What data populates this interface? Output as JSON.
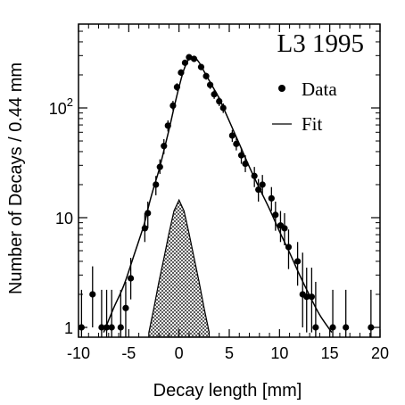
{
  "chart_data": {
    "type": "scatter",
    "title": "L3  1995",
    "xlabel": "Decay length [mm]",
    "ylabel": "Number of Decays / 0.44 mm",
    "xlim": [
      -10,
      20
    ],
    "ylim": [
      1,
      600
    ],
    "yscale": "log",
    "x_ticks": [
      "-10",
      "-5",
      "0",
      "5",
      "10",
      "15",
      "20"
    ],
    "y_ticks": [
      {
        "value": 1,
        "base": "1",
        "exp": ""
      },
      {
        "value": 10,
        "base": "10",
        "exp": ""
      },
      {
        "value": 100,
        "base": "10",
        "exp": "2"
      }
    ],
    "legend": {
      "position": "top-right",
      "data_label": "Data",
      "fit_label": "Fit"
    },
    "series": [
      {
        "name": "Data",
        "kind": "points_with_errors",
        "points": [
          {
            "x": -9.7,
            "y": 1,
            "lo": 0.5,
            "hi": 2.2
          },
          {
            "x": -8.6,
            "y": 2,
            "lo": 1.0,
            "hi": 3.6
          },
          {
            "x": -7.7,
            "y": 1,
            "lo": 0.5,
            "hi": 2.2
          },
          {
            "x": -7.2,
            "y": 1,
            "lo": 0.5,
            "hi": 2.2
          },
          {
            "x": -6.7,
            "y": 1,
            "lo": 0.5,
            "hi": 2.2
          },
          {
            "x": -5.8,
            "y": 1,
            "lo": 0.5,
            "hi": 2.2
          },
          {
            "x": -5.3,
            "y": 1.5,
            "lo": 0.8,
            "hi": 2.6
          },
          {
            "x": -4.8,
            "y": 2.8,
            "lo": 1.8,
            "hi": 4.3
          },
          {
            "x": -3.4,
            "y": 8,
            "lo": 6,
            "hi": 11
          },
          {
            "x": -3.1,
            "y": 11,
            "lo": 8,
            "hi": 14
          },
          {
            "x": -2.3,
            "y": 20,
            "lo": 16,
            "hi": 24
          },
          {
            "x": -1.9,
            "y": 29,
            "lo": 25,
            "hi": 34
          },
          {
            "x": -1.5,
            "y": 45,
            "lo": 38,
            "hi": 52
          },
          {
            "x": -1.1,
            "y": 69,
            "lo": 61,
            "hi": 77
          },
          {
            "x": -0.6,
            "y": 105,
            "lo": 95,
            "hi": 116
          },
          {
            "x": -0.2,
            "y": 155,
            "lo": 143,
            "hi": 168
          },
          {
            "x": 0.2,
            "y": 210,
            "lo": 196,
            "hi": 225
          },
          {
            "x": 0.6,
            "y": 258,
            "lo": 242,
            "hi": 274
          },
          {
            "x": 1.0,
            "y": 290,
            "lo": 273,
            "hi": 307
          },
          {
            "x": 1.5,
            "y": 280,
            "lo": 263,
            "hi": 297
          },
          {
            "x": 2.2,
            "y": 236,
            "lo": 221,
            "hi": 251
          },
          {
            "x": 2.7,
            "y": 195,
            "lo": 181,
            "hi": 209
          },
          {
            "x": 3.1,
            "y": 162,
            "lo": 149,
            "hi": 175
          },
          {
            "x": 3.5,
            "y": 133,
            "lo": 121,
            "hi": 145
          },
          {
            "x": 4.0,
            "y": 115,
            "lo": 104,
            "hi": 126
          },
          {
            "x": 4.4,
            "y": 100,
            "lo": 90,
            "hi": 110
          },
          {
            "x": 5.3,
            "y": 56,
            "lo": 49,
            "hi": 63
          },
          {
            "x": 5.7,
            "y": 47,
            "lo": 41,
            "hi": 54
          },
          {
            "x": 6.2,
            "y": 37,
            "lo": 31,
            "hi": 43
          },
          {
            "x": 6.6,
            "y": 31,
            "lo": 26,
            "hi": 37
          },
          {
            "x": 7.5,
            "y": 24,
            "lo": 19,
            "hi": 29
          },
          {
            "x": 7.9,
            "y": 18,
            "lo": 14,
            "hi": 22.5
          },
          {
            "x": 8.3,
            "y": 20,
            "lo": 16,
            "hi": 24.5
          },
          {
            "x": 9.2,
            "y": 15,
            "lo": 11.5,
            "hi": 19
          },
          {
            "x": 9.6,
            "y": 10.6,
            "lo": 7.6,
            "hi": 14
          },
          {
            "x": 10.1,
            "y": 8.5,
            "lo": 6,
            "hi": 11.5
          },
          {
            "x": 10.5,
            "y": 8,
            "lo": 5.6,
            "hi": 11
          },
          {
            "x": 10.9,
            "y": 5.4,
            "lo": 3.4,
            "hi": 7.8
          },
          {
            "x": 11.8,
            "y": 4,
            "lo": 2.4,
            "hi": 6
          },
          {
            "x": 12.3,
            "y": 2,
            "lo": 1.0,
            "hi": 4.8
          },
          {
            "x": 12.7,
            "y": 1.9,
            "lo": 0.9,
            "hi": 3.5
          },
          {
            "x": 13.2,
            "y": 1.9,
            "lo": 0.9,
            "hi": 3.5
          },
          {
            "x": 13.6,
            "y": 1,
            "lo": 0.5,
            "hi": 2.6
          },
          {
            "x": 15.3,
            "y": 1,
            "lo": 0.5,
            "hi": 2.2
          },
          {
            "x": 16.6,
            "y": 1,
            "lo": 0.5,
            "hi": 2.2
          },
          {
            "x": 19.1,
            "y": 1,
            "lo": 0.5,
            "hi": 2.2
          }
        ]
      },
      {
        "name": "Fit",
        "kind": "curve",
        "x": [
          -7.5,
          -6.5,
          -5.5,
          -4.5,
          -3.5,
          -3.0,
          -2.5,
          -2.0,
          -1.5,
          -1.0,
          -0.5,
          0.0,
          0.5,
          1.0,
          1.5,
          2.0,
          2.5,
          3.0,
          3.5,
          4.0,
          5.0,
          6.0,
          7.0,
          8.0,
          9.0,
          10.0,
          11.0,
          12.0,
          13.0,
          14.0,
          15.2
        ],
        "y": [
          0.9,
          1.5,
          2.4,
          4.5,
          8.5,
          13,
          19,
          27,
          41,
          63,
          100,
          155,
          225,
          280,
          290,
          260,
          215,
          178,
          148,
          122,
          76,
          47,
          29,
          18.5,
          12,
          7.5,
          4.8,
          3.0,
          1.95,
          1.3,
          0.9
        ]
      },
      {
        "name": "",
        "kind": "hatched_area",
        "x": [
          -3.0,
          -2.5,
          -2.0,
          -1.5,
          -1.0,
          -0.5,
          0.0,
          0.5,
          1.0,
          1.5,
          2.0,
          2.5,
          3.0
        ],
        "y": [
          0.9,
          1.5,
          2.6,
          4.3,
          7.2,
          11.5,
          14.5,
          11.5,
          7.2,
          4.3,
          2.6,
          1.5,
          0.9
        ]
      }
    ]
  }
}
